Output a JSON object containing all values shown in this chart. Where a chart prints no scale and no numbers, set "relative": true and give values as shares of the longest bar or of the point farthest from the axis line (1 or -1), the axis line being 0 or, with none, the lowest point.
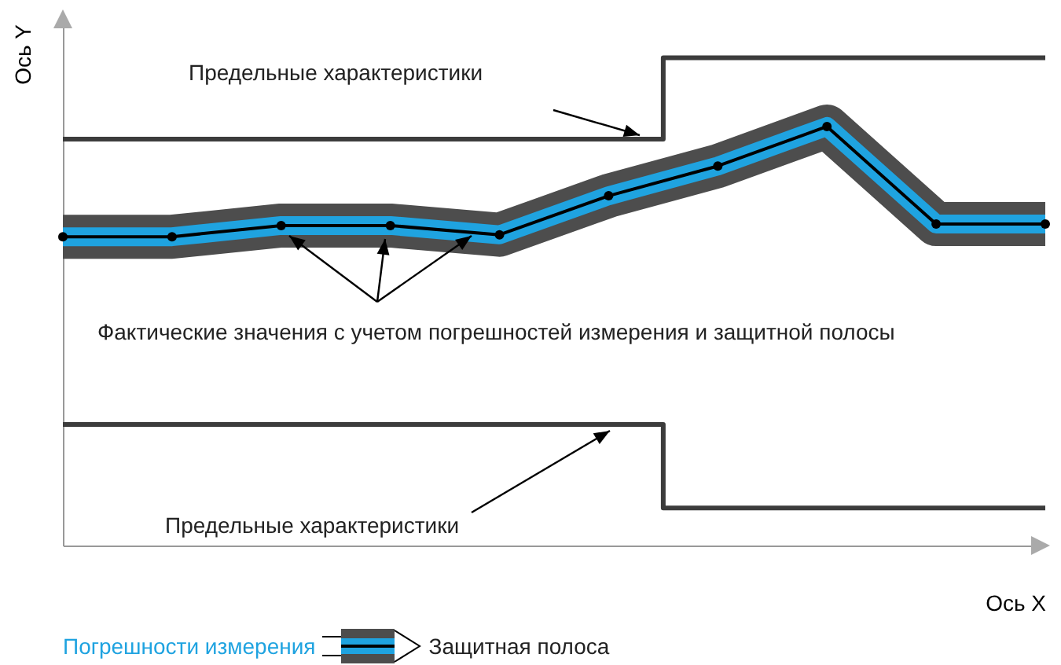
{
  "chart_data": {
    "type": "line",
    "relative": true,
    "xlabel": "Ось X",
    "ylabel": "Ось Y",
    "legend": "bottom",
    "marker": "circle",
    "categories": [
      null,
      null,
      null,
      null,
      null,
      null,
      null,
      null,
      null,
      null
    ],
    "annotations": [
      "Предельные характеристики",
      "Фактические значения с учетом погрешностей измерения и защитной полосы",
      "Предельные характеристики"
    ],
    "series": [
      {
        "type": "step",
        "marker": "none",
        "color": "#3c3c3c",
        "values": [
          0.833,
          0.833,
          0.833,
          0.833,
          0.833,
          0.833,
          1,
          1,
          1,
          1
        ]
      },
      {
        "type": "step",
        "marker": "none",
        "color": "#3c3c3c",
        "values": [
          0.248,
          0.248,
          0.248,
          0.248,
          0.248,
          0.248,
          0.077,
          0.077,
          0.077,
          0.077
        ]
      },
      {
        "name": "Защитная полоса",
        "marker": "none",
        "color": "#4d4d4d",
        "values": [
          0.633,
          0.633,
          0.656,
          0.656,
          0.637,
          0.717,
          0.778,
          0.859,
          0.659,
          0.659
        ]
      },
      {
        "name": "Погрешности измерения",
        "marker": "none",
        "color": "#1fa3e0",
        "values": [
          0.633,
          0.633,
          0.656,
          0.656,
          0.637,
          0.717,
          0.778,
          0.859,
          0.659,
          0.659
        ]
      },
      {
        "color": "#000000",
        "values": [
          0.633,
          0.633,
          0.656,
          0.656,
          0.637,
          0.717,
          0.778,
          0.859,
          0.659,
          0.659
        ]
      }
    ]
  }
}
